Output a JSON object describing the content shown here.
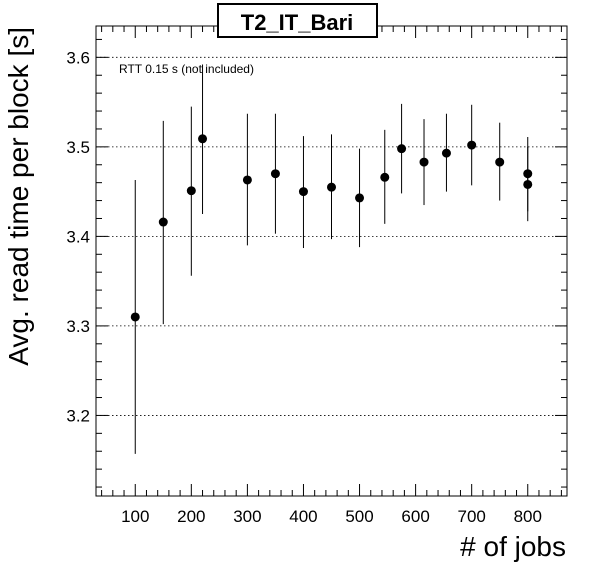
{
  "chart_data": {
    "type": "scatter",
    "title": "T2_IT_Bari",
    "xlabel": "# of jobs",
    "ylabel": "Avg. read time per block [s]",
    "annotation": "RTT 0.15 s (not included)",
    "xlim": [
      30,
      870
    ],
    "ylim": [
      3.11,
      3.635
    ],
    "xticks": [
      100,
      200,
      300,
      400,
      500,
      600,
      700,
      800
    ],
    "yticks": [
      3.2,
      3.3,
      3.4,
      3.5,
      3.6
    ],
    "ytick_labels": [
      "3.2",
      "3.3",
      "3.4",
      "3.5",
      "3.6"
    ],
    "grid": "horizontal-dotted",
    "points": [
      {
        "x": 100,
        "y": 3.31,
        "ylow": 3.157,
        "yhigh": 3.463
      },
      {
        "x": 150,
        "y": 3.416,
        "ylow": 3.302,
        "yhigh": 3.529
      },
      {
        "x": 200,
        "y": 3.451,
        "ylow": 3.356,
        "yhigh": 3.545
      },
      {
        "x": 220,
        "y": 3.509,
        "ylow": 3.425,
        "yhigh": 3.592
      },
      {
        "x": 300,
        "y": 3.463,
        "ylow": 3.39,
        "yhigh": 3.537
      },
      {
        "x": 350,
        "y": 3.47,
        "ylow": 3.403,
        "yhigh": 3.537
      },
      {
        "x": 400,
        "y": 3.45,
        "ylow": 3.387,
        "yhigh": 3.512
      },
      {
        "x": 450,
        "y": 3.455,
        "ylow": 3.397,
        "yhigh": 3.514
      },
      {
        "x": 500,
        "y": 3.443,
        "ylow": 3.388,
        "yhigh": 3.498
      },
      {
        "x": 545,
        "y": 3.466,
        "ylow": 3.414,
        "yhigh": 3.519
      },
      {
        "x": 575,
        "y": 3.498,
        "ylow": 3.448,
        "yhigh": 3.548
      },
      {
        "x": 615,
        "y": 3.483,
        "ylow": 3.435,
        "yhigh": 3.531
      },
      {
        "x": 655,
        "y": 3.493,
        "ylow": 3.45,
        "yhigh": 3.537
      },
      {
        "x": 700,
        "y": 3.502,
        "ylow": 3.457,
        "yhigh": 3.547
      },
      {
        "x": 750,
        "y": 3.483,
        "ylow": 3.44,
        "yhigh": 3.527
      },
      {
        "x": 800,
        "y": 3.47,
        "ylow": 3.428,
        "yhigh": 3.511
      },
      {
        "x": 800,
        "y": 3.458,
        "ylow": 3.417,
        "yhigh": 3.5
      }
    ]
  }
}
